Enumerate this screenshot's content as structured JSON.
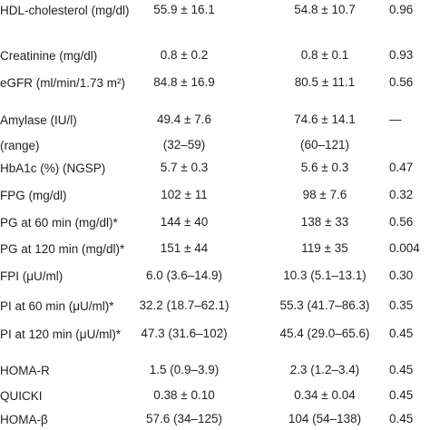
{
  "table": {
    "rows": [
      [
        "HDL-cholesterol (mg/dl)",
        "55.9 ± 16.1",
        "54.8 ± 10.7",
        "0.96"
      ],
      [
        "Creatinine (mg/dl)",
        "0.8 ± 0.2",
        "0.8 ± 0.1",
        "0.93"
      ],
      [
        "eGFR (ml/min/1.73 m²)",
        "84.8 ± 16.9",
        "80.5 ± 11.1",
        "0.56"
      ],
      [
        "Amylase (IU/l)",
        "49.4 ± 7.6",
        "74.6 ± 14.1",
        "—"
      ],
      [
        "(range)",
        "(32–59)",
        "(60–121)",
        null
      ],
      [
        "HbA1c (%) (NGSP)",
        "5.7 ± 0.3",
        "5.6 ± 0.3",
        "0.47"
      ],
      [
        "FPG (mg/dl)",
        "102 ± 11",
        "98 ± 7.6",
        "0.32"
      ],
      [
        "PG at 60 min (mg/dl)*",
        "144 ± 40",
        "138 ± 33",
        "0.56"
      ],
      [
        "PG at 120 min (mg/dl)*",
        "151 ± 44",
        "119 ± 35",
        "0.004"
      ],
      [
        "FPI (μU/ml)",
        "6.0 (3.6–14.9)",
        "10.3 (5.1–13.1)",
        "0.30"
      ],
      [
        "PI at 60 min (μU/ml)*",
        "32.2 (18.7–62.1)",
        "55.3 (41.7–86.3)",
        "0.35"
      ],
      [
        "PI at 120 min (μU/ml)*",
        "47.3 (31.6–102)",
        "45.4 (29.0–65.6)",
        "0.45"
      ],
      [
        "HOMA-R",
        "1.5 (0.9–3.9)",
        "2.3 (1.2–3.4)",
        "0.45"
      ],
      [
        "QUICKI",
        "0.38 ± 0.10",
        "0.34 ± 0.04",
        "0.45"
      ],
      [
        "HOMA-β",
        "57.6 (34–125)",
        "104 (54–138)",
        "0.45"
      ]
    ]
  }
}
